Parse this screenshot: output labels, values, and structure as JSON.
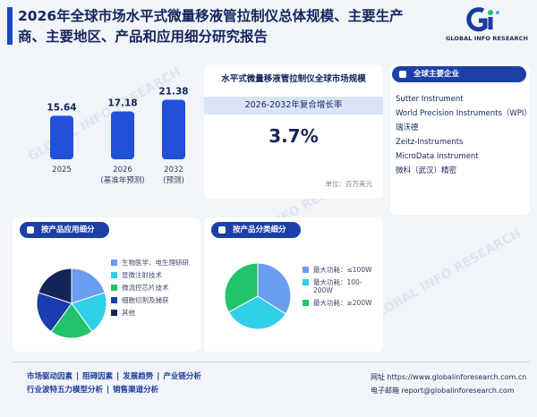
{
  "header": {
    "title": "2026年全球市场水平式微量移液管拉制仪总体规模、主要生产商、主要地区、产品和应用细分研究报告",
    "logo_text": "GLOBAL INFO RESEARCH"
  },
  "bars": {
    "items": [
      {
        "year": "2025",
        "value": "15.64",
        "v": 15.64,
        "note": ""
      },
      {
        "year": "2026",
        "value": "17.18",
        "v": 17.18,
        "note": "(基准年预测)"
      },
      {
        "year": "2032",
        "value": "21.38",
        "v": 21.38,
        "note": "(预测)"
      }
    ],
    "color": "#2350d8"
  },
  "market": {
    "title": "水平式微量移液管拉制仪全球市场规模",
    "cagr_label": "2026-2032年复合增长率",
    "cagr_value": "3.7%",
    "unit": "单位：百万美元"
  },
  "companies": {
    "header": "全球主要企业",
    "items": [
      "Sutter Instrument",
      "World Precision Instruments（WPI）",
      "瑞沃德",
      "Zeitz-Instruments",
      "MicroData Instrument",
      "微科（武汉）精密"
    ]
  },
  "app_segment": {
    "header": "按产品应用细分",
    "slices": [
      {
        "label": "生物医学、电生理研研",
        "value": 20,
        "color": "#6a9cf0"
      },
      {
        "label": "显微注射技术",
        "value": 20,
        "color": "#2fd0e8"
      },
      {
        "label": "微流控芯片技术",
        "value": 20,
        "color": "#22c36a"
      },
      {
        "label": "细胞切割及捕获",
        "value": 20,
        "color": "#1b3bb0"
      },
      {
        "label": "其他",
        "value": 20,
        "color": "#142457"
      }
    ]
  },
  "type_segment": {
    "header": "按产品分类细分",
    "slices": [
      {
        "label": "最大功耗：≤100W",
        "value": 34,
        "color": "#6a9cf0"
      },
      {
        "label": "最大功耗：100-200W",
        "value": 33,
        "color": "#2fd0e8"
      },
      {
        "label": "最大功耗：≥200W",
        "value": 33,
        "color": "#22c36a"
      }
    ]
  },
  "footer": {
    "links_row1": [
      "市场驱动因素",
      "阻碍因素",
      "发展趋势",
      "产业链分析"
    ],
    "links_row2": [
      "行业波特五力模型分析",
      "销售渠道分析"
    ],
    "website": "网址 https://www.globalinforesearch.com.cn",
    "email": "电子邮箱 report@globalinforesearch.com"
  }
}
